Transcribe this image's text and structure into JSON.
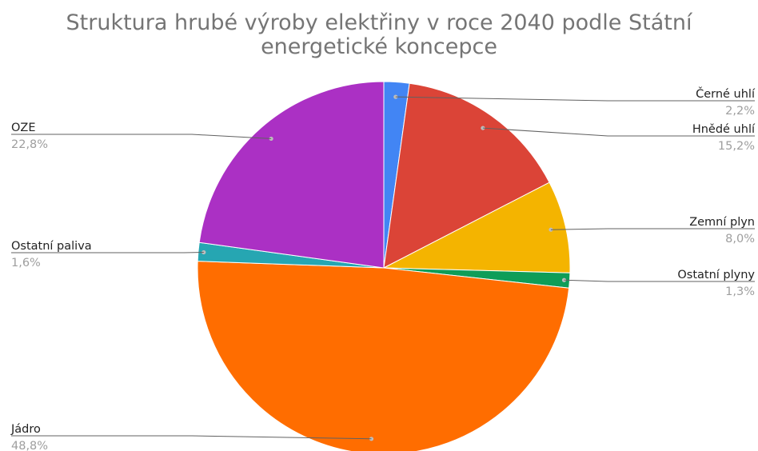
{
  "chart_data": {
    "type": "pie",
    "title_lines": [
      "Struktura hrubé výroby elektřiny v roce 2040 podle Státní",
      "energetické koncepce"
    ],
    "slices": [
      {
        "name": "Černé uhlí",
        "value": 2.2,
        "label": "2,2%",
        "color": "#4285f4"
      },
      {
        "name": "Hnědé uhlí",
        "value": 15.2,
        "label": "15,2%",
        "color": "#db4437"
      },
      {
        "name": "Zemní plyn",
        "value": 8.0,
        "label": "8,0%",
        "color": "#f4b400"
      },
      {
        "name": "Ostatní plyny",
        "value": 1.3,
        "label": "1,3%",
        "color": "#0f9d58"
      },
      {
        "name": "Jádro",
        "value": 48.8,
        "label": "48,8%",
        "color": "#ff6d00"
      },
      {
        "name": "Ostatní paliva",
        "value": 1.6,
        "label": "1,6%",
        "color": "#26a6b2"
      },
      {
        "name": "OZE",
        "value": 22.8,
        "label": "22,8%",
        "color": "#ab30c4"
      }
    ],
    "start_angle": "12 o'clock",
    "direction": "clockwise",
    "legend": "none (callout labels)"
  }
}
